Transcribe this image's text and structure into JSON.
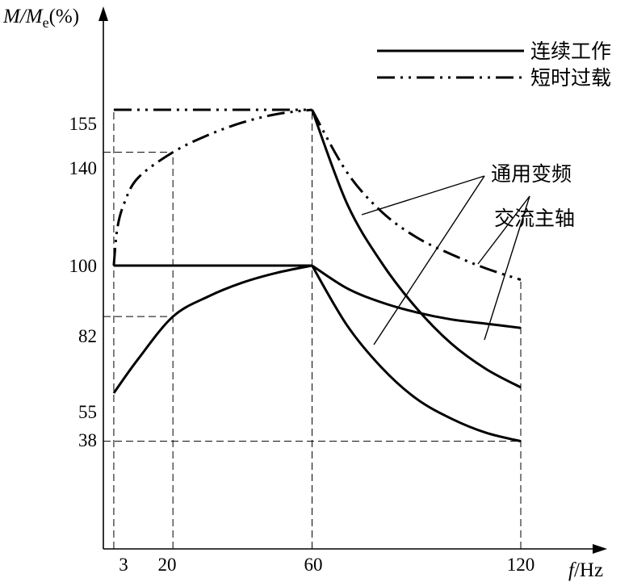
{
  "chart_data": {
    "type": "line",
    "y_axis_label": {
      "prefix": "M/M",
      "sub": "e",
      "suffix": "(%)"
    },
    "x_axis_label": {
      "italic": "f",
      "unit": "/Hz"
    },
    "x_ticks": [
      "3",
      "20",
      "60",
      "120"
    ],
    "y_ticks": [
      "155",
      "140",
      "100",
      "82",
      "55",
      "38"
    ],
    "xlim": [
      0,
      131
    ],
    "ylim": [
      0,
      195
    ],
    "legend": {
      "placement": "top-right",
      "items": [
        {
          "label": "连续工作",
          "style": "solid"
        },
        {
          "label": "短时过载",
          "style": "dash-dot"
        }
      ]
    },
    "annotations": [
      {
        "label": "通用变频"
      },
      {
        "label": "交流主轴"
      }
    ],
    "series": [
      {
        "style": "solid",
        "points": [
          [
            3,
            100
          ],
          [
            60,
            100
          ]
        ]
      },
      {
        "style": "dash-dot",
        "points": [
          [
            3,
            155
          ],
          [
            60,
            155
          ]
        ]
      },
      {
        "style": "solid",
        "points": [
          [
            3,
            55
          ],
          [
            10,
            67
          ],
          [
            20,
            82
          ],
          [
            30,
            89
          ],
          [
            40,
            94
          ],
          [
            50,
            97.5
          ],
          [
            60,
            100
          ]
        ]
      },
      {
        "style": "dash-dot",
        "points": [
          [
            3,
            100
          ],
          [
            4,
            113
          ],
          [
            6,
            122
          ],
          [
            10,
            131
          ],
          [
            20,
            140
          ],
          [
            30,
            146
          ],
          [
            40,
            150.5
          ],
          [
            50,
            153.5
          ],
          [
            60,
            155
          ]
        ]
      },
      {
        "style": "dash-dot",
        "points": [
          [
            60,
            155
          ],
          [
            70,
            133
          ],
          [
            80,
            119
          ],
          [
            90,
            110
          ],
          [
            100,
            104
          ],
          [
            110,
            99
          ],
          [
            120,
            95
          ]
        ]
      },
      {
        "style": "solid",
        "points": [
          [
            60,
            155
          ],
          [
            70,
            122
          ],
          [
            80,
            101
          ],
          [
            90,
            85
          ],
          [
            100,
            72.5
          ],
          [
            110,
            63.5
          ],
          [
            120,
            57
          ]
        ]
      },
      {
        "style": "solid",
        "points": [
          [
            60,
            100
          ],
          [
            70,
            92
          ],
          [
            80,
            87
          ],
          [
            90,
            83.5
          ],
          [
            100,
            81
          ],
          [
            110,
            79.5
          ],
          [
            120,
            78
          ]
        ]
      },
      {
        "style": "solid",
        "points": [
          [
            60,
            100
          ],
          [
            70,
            79
          ],
          [
            80,
            64
          ],
          [
            90,
            53
          ],
          [
            100,
            46
          ],
          [
            110,
            41
          ],
          [
            120,
            38
          ]
        ]
      }
    ],
    "guides": [
      {
        "v": 3,
        "from": 0,
        "to": 155
      },
      {
        "v": 20,
        "from": 0,
        "to": 140
      },
      {
        "v": 60,
        "from": 0,
        "to": 155
      },
      {
        "v": 120,
        "from": 0,
        "to": 95
      },
      {
        "h": 140,
        "from": 0,
        "to": 20
      },
      {
        "h": 82,
        "from": 0,
        "to": 20
      },
      {
        "h": 38,
        "from": 0,
        "to": 120
      }
    ]
  }
}
